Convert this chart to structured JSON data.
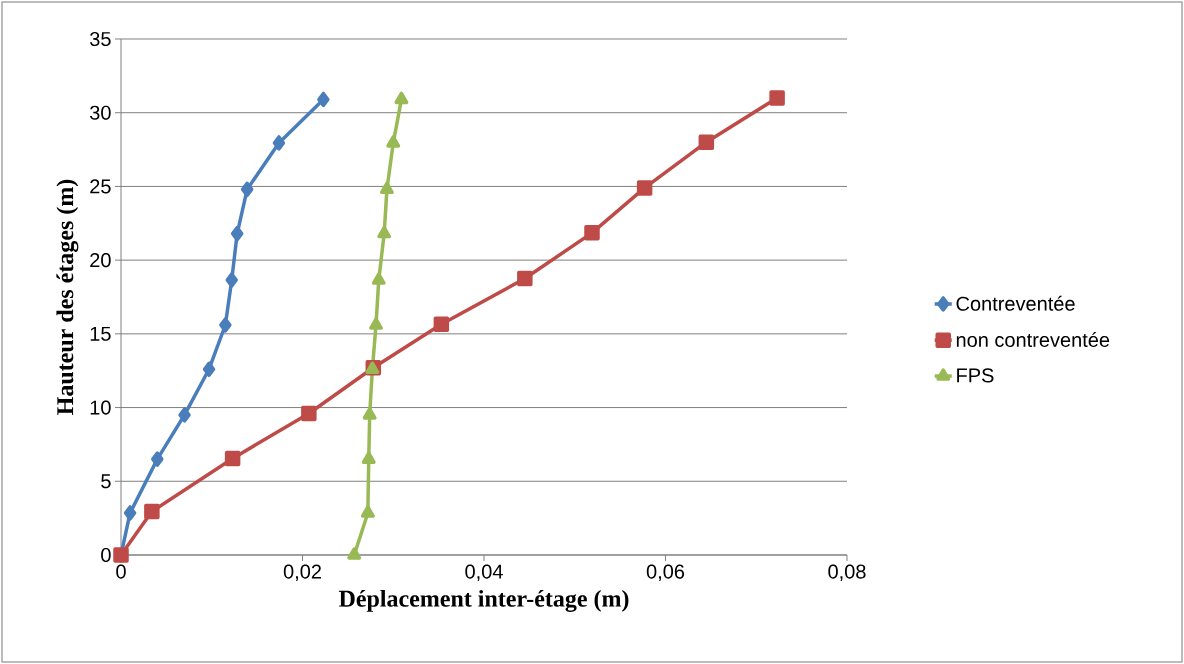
{
  "chart_data": {
    "type": "line",
    "xlabel": "Déplacement inter-étage (m)",
    "ylabel": "Hauteur des étages (m)",
    "xlim": [
      0,
      0.08
    ],
    "ylim": [
      0,
      35
    ],
    "xticks": [
      0,
      {
        "value": 0.02,
        "label": "0,02"
      },
      {
        "value": 0.04,
        "label": "0,04"
      },
      {
        "value": 0.06,
        "label": "0,06"
      },
      {
        "value": 0.08,
        "label": "0,08"
      }
    ],
    "yticks": [
      0,
      5,
      10,
      15,
      20,
      25,
      30,
      35
    ],
    "grid": "y",
    "legend": "right",
    "line_style": "solid",
    "series": [
      {
        "name": "Contreventée",
        "color": "#4a7ebb",
        "marker": "diamond",
        "x": [
          0,
          0.001,
          0.004,
          0.007,
          0.0097,
          0.0115,
          0.0122,
          0.0128,
          0.0139,
          0.0174,
          0.0223
        ],
        "values": [
          0,
          2.85,
          6.5,
          9.5,
          12.6,
          15.6,
          18.65,
          21.8,
          24.8,
          27.95,
          30.9
        ]
      },
      {
        "name": "non contreventée",
        "color": "#be4b48",
        "marker": "square",
        "x": [
          0,
          0.0034,
          0.0123,
          0.0207,
          0.0278,
          0.0353,
          0.0445,
          0.0519,
          0.0577,
          0.0645,
          0.0723
        ],
        "values": [
          0,
          2.95,
          6.55,
          9.6,
          12.7,
          15.65,
          18.75,
          21.85,
          24.9,
          28.0,
          31.0
        ]
      },
      {
        "name": "FPS",
        "color": "#98b954",
        "marker": "triangle",
        "x": [
          0.0257,
          0.0272,
          0.0273,
          0.0274,
          0.0277,
          0.0281,
          0.0284,
          0.029,
          0.0293,
          0.03,
          0.0309
        ],
        "values": [
          0,
          2.85,
          6.5,
          9.5,
          12.6,
          15.6,
          18.65,
          21.8,
          24.8,
          27.95,
          30.9
        ]
      }
    ]
  }
}
